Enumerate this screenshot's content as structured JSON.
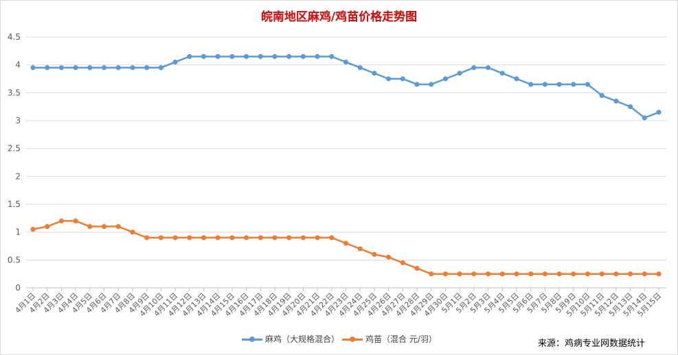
{
  "chart_data": {
    "type": "line",
    "title": "皖南地区麻鸡/鸡苗价格走势图",
    "source": "来源：鸡病专业网数据统计",
    "ylim": [
      0,
      4.5
    ],
    "yticks": [
      "0",
      "0.5",
      "1",
      "1.5",
      "2",
      "2.5",
      "3",
      "3.5",
      "4",
      "4.5"
    ],
    "grid": true,
    "legend_position": "bottom",
    "categories": [
      "4月1日",
      "4月2日",
      "4月3日",
      "4月4日",
      "4月5日",
      "4月6日",
      "4月7日",
      "4月8日",
      "4月9日",
      "4月10日",
      "4月11日",
      "4月12日",
      "4月13日",
      "4月14日",
      "4月15日",
      "4月16日",
      "4月17日",
      "4月18日",
      "4月19日",
      "4月20日",
      "4月21日",
      "4月22日",
      "4月23日",
      "4月24日",
      "4月25日",
      "4月26日",
      "4月27日",
      "4月28日",
      "4月29日",
      "4月30日",
      "5月1日",
      "5月2日",
      "5月3日",
      "5月4日",
      "5月5日",
      "5月6日",
      "5月7日",
      "5月8日",
      "5月9日",
      "5月10日",
      "5月11日",
      "5月12日",
      "5月13日",
      "5月14日",
      "5月15日"
    ],
    "series": [
      {
        "name": "麻鸡（大规格混合）",
        "color": "#5b9bd5",
        "values": [
          3.95,
          3.95,
          3.95,
          3.95,
          3.95,
          3.95,
          3.95,
          3.95,
          3.95,
          3.95,
          4.05,
          4.15,
          4.15,
          4.15,
          4.15,
          4.15,
          4.15,
          4.15,
          4.15,
          4.15,
          4.15,
          4.15,
          4.05,
          3.95,
          3.85,
          3.75,
          3.75,
          3.65,
          3.65,
          3.75,
          3.85,
          3.95,
          3.95,
          3.85,
          3.75,
          3.65,
          3.65,
          3.65,
          3.65,
          3.65,
          3.45,
          3.35,
          3.25,
          3.05,
          3.15
        ]
      },
      {
        "name": "鸡苗（混合 元/羽）",
        "color": "#ed7d31",
        "values": [
          1.05,
          1.1,
          1.2,
          1.2,
          1.1,
          1.1,
          1.1,
          1.0,
          0.9,
          0.9,
          0.9,
          0.9,
          0.9,
          0.9,
          0.9,
          0.9,
          0.9,
          0.9,
          0.9,
          0.9,
          0.9,
          0.9,
          0.8,
          0.7,
          0.6,
          0.55,
          0.45,
          0.35,
          0.25,
          0.25,
          0.25,
          0.25,
          0.25,
          0.25,
          0.25,
          0.25,
          0.25,
          0.25,
          0.25,
          0.25,
          0.25,
          0.25,
          0.25,
          0.25,
          0.25
        ]
      }
    ]
  }
}
